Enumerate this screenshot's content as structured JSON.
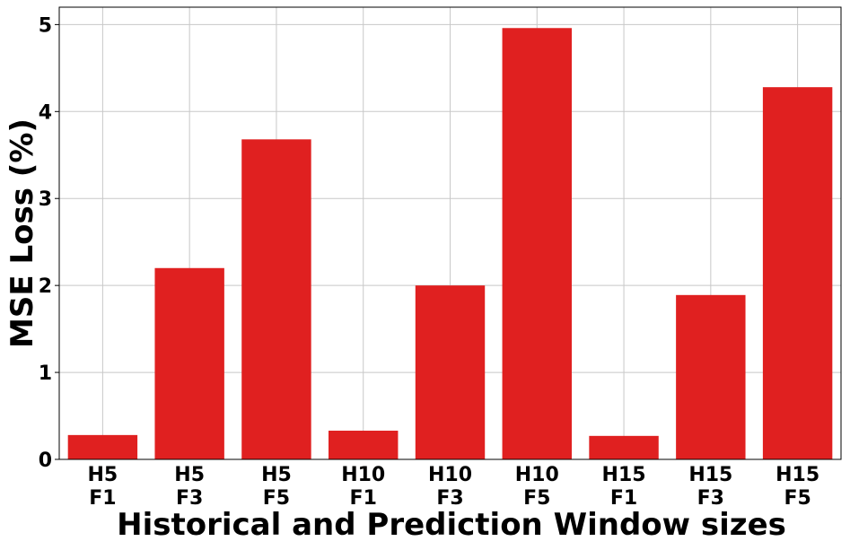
{
  "chart_data": {
    "type": "bar",
    "xlabel": "Historical and Prediction Window sizes",
    "ylabel": "MSE Loss (%)",
    "categories": [
      "H5\nF1",
      "H5\nF3",
      "H5\nF5",
      "H10\nF1",
      "H10\nF3",
      "H10\nF5",
      "H15\nF1",
      "H15\nF3",
      "H15\nF5"
    ],
    "values": [
      0.28,
      2.2,
      3.68,
      0.33,
      2.0,
      4.96,
      0.27,
      1.89,
      4.28
    ],
    "color": "#e02020",
    "ylim": [
      0,
      5.2
    ],
    "yticks": [
      0,
      1,
      2,
      3,
      4,
      5
    ],
    "grid": true
  }
}
